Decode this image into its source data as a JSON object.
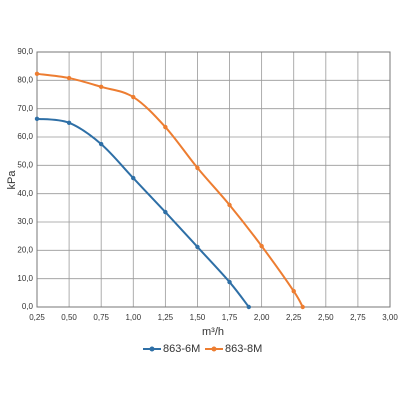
{
  "chart_data": {
    "type": "line",
    "x_label": "m³/h",
    "y_label": "kPa",
    "xlim": [
      0.25,
      3.0
    ],
    "xticks": [
      {
        "value": 0.25,
        "label": "0,25"
      },
      {
        "value": 0.5,
        "label": "0,50"
      },
      {
        "value": 0.75,
        "label": "0,75"
      },
      {
        "value": 1.0,
        "label": "1,00"
      },
      {
        "value": 1.25,
        "label": "1,25"
      },
      {
        "value": 1.5,
        "label": "1,50"
      },
      {
        "value": 1.75,
        "label": "1,75"
      },
      {
        "value": 2.0,
        "label": "2,00"
      },
      {
        "value": 2.25,
        "label": "2,25"
      },
      {
        "value": 2.5,
        "label": "2,50"
      },
      {
        "value": 2.75,
        "label": "2,75"
      },
      {
        "value": 3.0,
        "label": "3,00"
      }
    ],
    "ylim": [
      0,
      90
    ],
    "yticks": [
      {
        "value": 0,
        "label": "0,0"
      },
      {
        "value": 10,
        "label": "10,0"
      },
      {
        "value": 20,
        "label": "20,0"
      },
      {
        "value": 30,
        "label": "30,0"
      },
      {
        "value": 40,
        "label": "40,0"
      },
      {
        "value": 50,
        "label": "50,0"
      },
      {
        "value": 60,
        "label": "60,0"
      },
      {
        "value": 70,
        "label": "70,0"
      },
      {
        "value": 80,
        "label": "80,0"
      },
      {
        "value": 90,
        "label": "90,0"
      }
    ],
    "grid": true,
    "series": [
      {
        "name": "863-6M",
        "color": "#2e6fa6",
        "x": [
          0.25,
          0.5,
          0.75,
          1.0,
          1.25,
          1.5,
          1.75,
          1.9
        ],
        "values": [
          66.4,
          65,
          57.5,
          45.5,
          33.5,
          21.2,
          8.8,
          0
        ]
      },
      {
        "name": "863-8M",
        "color": "#ed7d31",
        "x": [
          0.25,
          0.5,
          0.75,
          1.0,
          1.25,
          1.5,
          1.75,
          2.0,
          2.25,
          2.32
        ],
        "values": [
          82.3,
          80.8,
          77.7,
          74.1,
          63.5,
          49.1,
          36,
          21.5,
          5.6,
          0
        ]
      }
    ]
  }
}
